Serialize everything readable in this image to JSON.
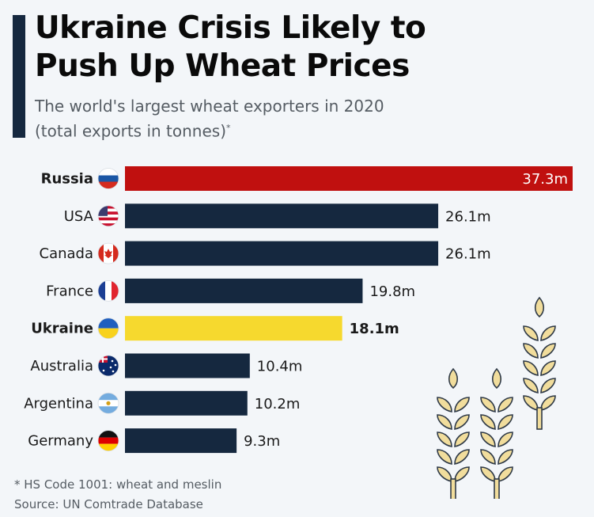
{
  "header": {
    "title_line1": "Ukraine Crisis Likely to",
    "title_line2": "Push Up Wheat Prices",
    "subtitle_line1": "The world's largest wheat exporters in 2020",
    "subtitle_line2": "(total exports in tonnes)",
    "subtitle_mark": "*"
  },
  "chart_data": {
    "type": "bar",
    "orientation": "horizontal",
    "title": "Ukraine Crisis Likely to Push Up Wheat Prices",
    "subtitle": "The world's largest wheat exporters in 2020 (total exports in tonnes)*",
    "unit": "million tonnes",
    "categories": [
      "Russia",
      "USA",
      "Canada",
      "France",
      "Ukraine",
      "Australia",
      "Argentina",
      "Germany"
    ],
    "values": [
      37.3,
      26.1,
      26.1,
      19.8,
      18.1,
      10.4,
      10.2,
      9.3
    ],
    "value_labels": [
      "37.3m",
      "26.1m",
      "26.1m",
      "19.8m",
      "18.1m",
      "10.4m",
      "10.2m",
      "9.3m"
    ],
    "flags": [
      "russia-flag",
      "usa-flag",
      "canada-flag",
      "france-flag",
      "ukraine-flag",
      "australia-flag",
      "argentina-flag",
      "germany-flag"
    ],
    "highlight": {
      "Russia": "#c0100f",
      "Ukraine": "#f6d92e"
    },
    "default_color": "#15283f",
    "bold_categories": [
      "Russia",
      "Ukraine"
    ],
    "xlim": [
      0,
      37.3
    ],
    "grid": false,
    "legend": "none",
    "xlabel": "",
    "ylabel": ""
  },
  "footer": {
    "note": "* HS Code 1001: wheat and meslin",
    "source": "Source: UN Comtrade Database"
  }
}
